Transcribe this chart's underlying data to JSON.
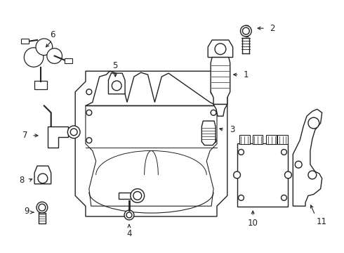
{
  "background_color": "#ffffff",
  "line_color": "#222222",
  "lw": 1.0,
  "fig_w": 4.9,
  "fig_h": 3.6,
  "dpi": 100
}
